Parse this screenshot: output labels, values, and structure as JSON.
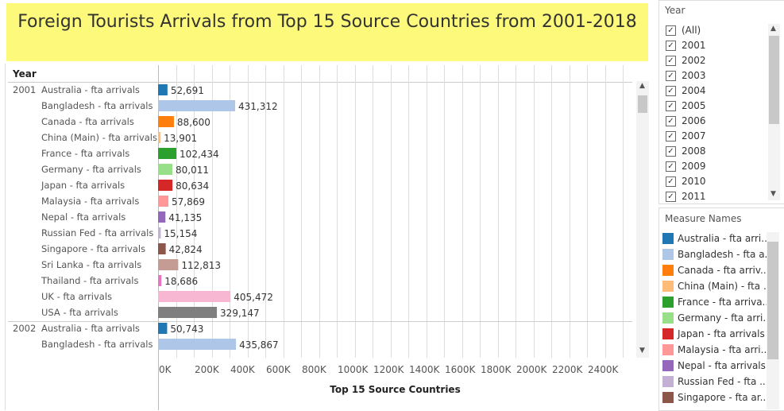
{
  "title": "Foreign Tourists Arrivals  from Top 15 Source Countries from 2001-2018",
  "year_header": "Year",
  "chart_data": {
    "type": "bar",
    "orientation": "horizontal",
    "xlabel": "Top 15 Source Countries",
    "xlim": [
      0,
      2600000
    ],
    "x_ticks": [
      "0K",
      "200K",
      "400K",
      "600K",
      "800K",
      "1000K",
      "1200K",
      "1400K",
      "1600K",
      "1800K",
      "2000K",
      "2200K",
      "2400K"
    ],
    "grid": true,
    "groups": [
      {
        "year": "2001",
        "rows": [
          {
            "label": "Australia - fta arrivals",
            "value": 52691,
            "value_label": "52,691"
          },
          {
            "label": "Bangladesh - fta arrivals",
            "value": 431312,
            "value_label": "431,312"
          },
          {
            "label": "Canada - fta arrivals",
            "value": 88600,
            "value_label": "88,600"
          },
          {
            "label": "China (Main) - fta arrivals",
            "value": 13901,
            "value_label": "13,901"
          },
          {
            "label": "France - fta arrivals",
            "value": 102434,
            "value_label": "102,434"
          },
          {
            "label": "Germany - fta arrivals",
            "value": 80011,
            "value_label": "80,011"
          },
          {
            "label": "Japan - fta arrivals",
            "value": 80634,
            "value_label": "80,634"
          },
          {
            "label": "Malaysia - fta arrivals",
            "value": 57869,
            "value_label": "57,869"
          },
          {
            "label": "Nepal - fta arrivals",
            "value": 41135,
            "value_label": "41,135"
          },
          {
            "label": "Russian Fed - fta arrivals",
            "value": 15154,
            "value_label": "15,154"
          },
          {
            "label": "Singapore - fta arrivals",
            "value": 42824,
            "value_label": "42,824"
          },
          {
            "label": "Sri Lanka - fta arrivals",
            "value": 112813,
            "value_label": "112,813"
          },
          {
            "label": "Thailand - fta arrivals",
            "value": 18686,
            "value_label": "18,686"
          },
          {
            "label": "UK - fta arrivals",
            "value": 405472,
            "value_label": "405,472"
          },
          {
            "label": "USA - fta arrivals",
            "value": 329147,
            "value_label": "329,147"
          }
        ]
      },
      {
        "year": "2002",
        "rows": [
          {
            "label": "Australia - fta arrivals",
            "value": 50743,
            "value_label": "50,743"
          },
          {
            "label": "Bangladesh - fta arrivals",
            "value": 435867,
            "value_label": "435,867"
          }
        ]
      }
    ]
  },
  "colors": {
    "Australia": "#1f77b4",
    "Bangladesh": "#aec7e8",
    "Canada": "#ff7f0e",
    "China (Main)": "#ffbb78",
    "France": "#2ca02c",
    "Germany": "#98df8a",
    "Japan": "#d62728",
    "Malaysia": "#ff9896",
    "Nepal": "#9467bd",
    "Russian Fed": "#c5b0d5",
    "Singapore": "#8c564b",
    "Sri Lanka": "#c49c94",
    "Thailand": "#e377c2",
    "UK": "#f7b6d2",
    "USA": "#7f7f7f"
  },
  "year_filter": {
    "title": "Year",
    "items": [
      "(All)",
      "2001",
      "2002",
      "2003",
      "2004",
      "2005",
      "2006",
      "2007",
      "2008",
      "2009",
      "2010",
      "2011"
    ],
    "checked_mark": "✓"
  },
  "legend": {
    "title": "Measure Names",
    "items": [
      {
        "label": "Australia - fta arri..",
        "color": "#1f77b4"
      },
      {
        "label": "Bangladesh - fta a..",
        "color": "#aec7e8"
      },
      {
        "label": "Canada - fta arriv..",
        "color": "#ff7f0e"
      },
      {
        "label": "China (Main) - fta ..",
        "color": "#ffbb78"
      },
      {
        "label": "France - fta arriva..",
        "color": "#2ca02c"
      },
      {
        "label": "Germany - fta arri..",
        "color": "#98df8a"
      },
      {
        "label": "Japan - fta arrivals",
        "color": "#d62728"
      },
      {
        "label": "Malaysia - fta arri..",
        "color": "#ff9896"
      },
      {
        "label": "Nepal - fta arrivals",
        "color": "#9467bd"
      },
      {
        "label": "Russian Fed - fta ..",
        "color": "#c5b0d5"
      },
      {
        "label": "Singapore - fta ar..",
        "color": "#8c564b"
      }
    ]
  },
  "icons": {
    "scroll_up": "▲",
    "scroll_down": "▼"
  }
}
